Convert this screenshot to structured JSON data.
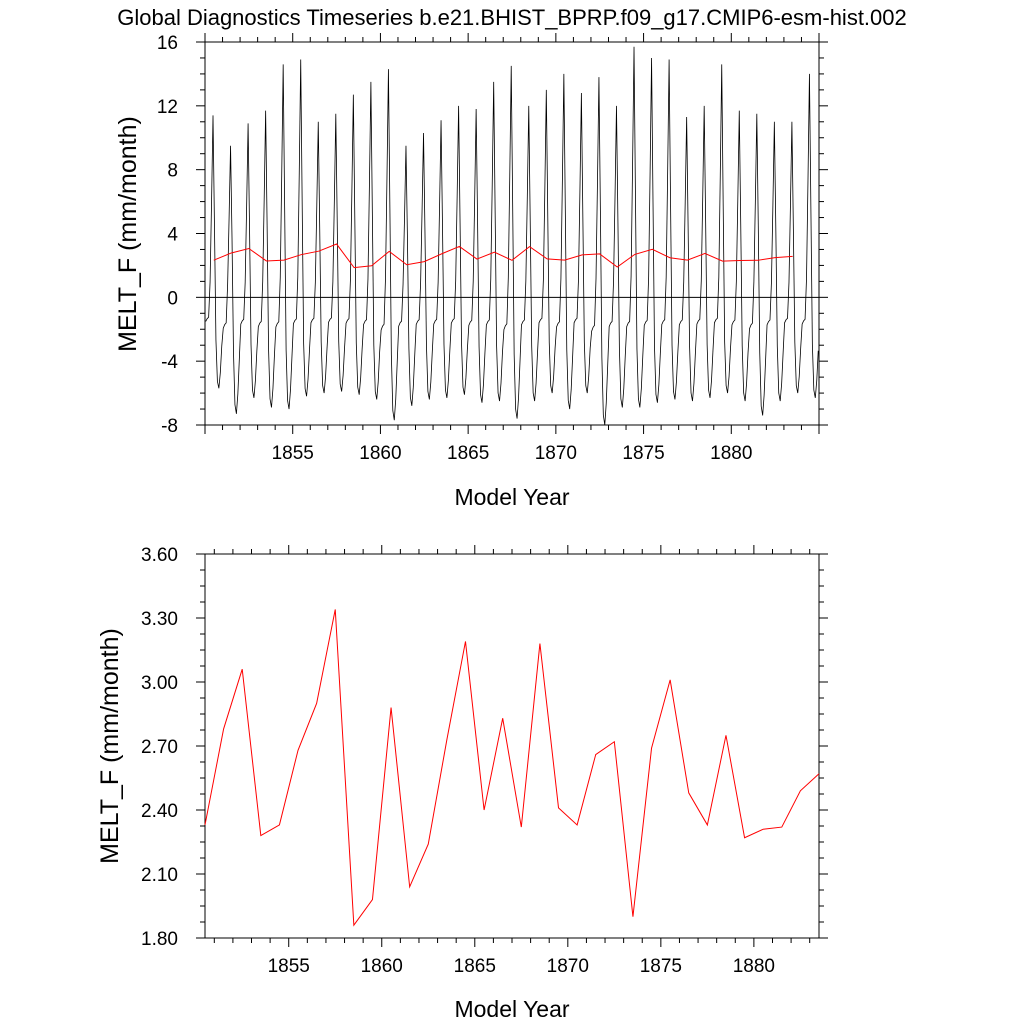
{
  "title": "Global Diagnostics Timeseries b.e21.BHIST_BPRP.f09_g17.CMIP6-esm-hist.002",
  "colors": {
    "monthly_line": "#000000",
    "annual_line": "#ff0000",
    "axis": "#000000"
  },
  "chart_data": [
    {
      "type": "line",
      "xlabel": "Model Year",
      "ylabel": "MELT_F (mm/month)",
      "xlim": [
        1850,
        1885
      ],
      "ylim": [
        -8,
        16
      ],
      "xticks": [
        "1855",
        "1860",
        "1865",
        "1870",
        "1875",
        "1880"
      ],
      "yticks": [
        "-8",
        "-4",
        "0",
        "4",
        "8",
        "12",
        "16"
      ],
      "reference_line_y": 0,
      "series": [
        {
          "kind": "monthly",
          "x_start": 1850.04,
          "x_step": 0.08333,
          "monthly_climatology_shape": [
            -1.7,
            -1.5,
            -1.4,
            0.7,
            4.3,
            8.2,
            3.2,
            -3.0,
            -5.9,
            -6.4,
            -5.3,
            -3.4
          ],
          "annual_peaks": [
            11.4,
            9.5,
            10.9,
            11.7,
            14.6,
            14.9,
            11.0,
            11.5,
            12.7,
            13.5,
            14.3,
            9.5,
            10.3,
            11.1,
            12.0,
            11.8,
            13.5,
            14.5,
            12.0,
            13.0,
            14.0,
            12.8,
            13.8,
            12.0,
            15.7,
            15.0,
            14.9,
            11.3,
            12.0,
            14.6,
            11.7,
            11.5,
            11.0,
            11.0,
            14.0
          ],
          "annual_troughs": [
            -5.7,
            -7.3,
            -6.3,
            -6.9,
            -7.0,
            -6.2,
            -6.0,
            -5.9,
            -6.1,
            -6.4,
            -7.7,
            -6.8,
            -6.4,
            -6.3,
            -6.1,
            -6.6,
            -6.5,
            -7.6,
            -6.5,
            -6.0,
            -7.0,
            -6.0,
            -8.0,
            -6.9,
            -6.9,
            -6.6,
            -6.4,
            -6.5,
            -6.3,
            -6.0,
            -6.5,
            -7.4,
            -6.5,
            -6.0,
            -6.3
          ]
        },
        {
          "kind": "annual-mean",
          "x_start": 1850.5,
          "x_step": 1,
          "values": [
            2.33,
            2.78,
            3.06,
            2.28,
            2.33,
            2.68,
            2.9,
            3.34,
            1.86,
            1.98,
            2.88,
            2.04,
            2.24,
            2.73,
            3.19,
            2.4,
            2.83,
            2.32,
            3.18,
            2.41,
            2.33,
            2.66,
            2.72,
            1.9,
            2.69,
            3.01,
            2.48,
            2.33,
            2.75,
            2.27,
            2.31,
            2.32,
            2.49,
            2.57
          ]
        }
      ]
    },
    {
      "type": "line",
      "xlabel": "Model Year",
      "ylabel": "MELT_F (mm/month)",
      "xlim": [
        1850.5,
        1883.5
      ],
      "ylim": [
        1.8,
        3.6
      ],
      "xticks": [
        "1855",
        "1860",
        "1865",
        "1870",
        "1875",
        "1880"
      ],
      "yticks": [
        "1.80",
        "2.10",
        "2.40",
        "2.70",
        "3.00",
        "3.30",
        "3.60"
      ],
      "series": [
        {
          "kind": "annual-mean",
          "x_start": 1850.5,
          "x_step": 1,
          "values": [
            2.33,
            2.78,
            3.06,
            2.28,
            2.33,
            2.68,
            2.9,
            3.34,
            1.86,
            1.98,
            2.88,
            2.04,
            2.24,
            2.73,
            3.19,
            2.4,
            2.83,
            2.32,
            3.18,
            2.41,
            2.33,
            2.66,
            2.72,
            1.9,
            2.69,
            3.01,
            2.48,
            2.33,
            2.75,
            2.27,
            2.31,
            2.32,
            2.49,
            2.57
          ]
        }
      ]
    }
  ]
}
